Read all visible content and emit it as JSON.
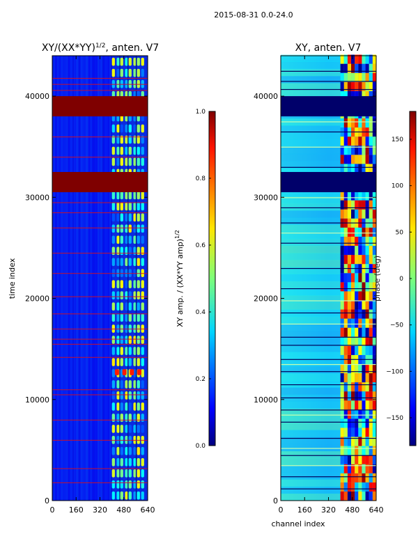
{
  "suptitle": "2015-08-31 0.0-24.0",
  "chart_data": [
    {
      "type": "heatmap",
      "title_main": "XY/(XX*YY)",
      "title_exp": "1/2",
      "title_tail": ", anten. V7",
      "xlabel": "",
      "ylabel": "time index",
      "xlim": [
        0,
        640
      ],
      "ylim": [
        0,
        44000
      ],
      "xticks": [
        "0",
        "160",
        "320",
        "480",
        "640"
      ],
      "yticks": [
        "0",
        "10000",
        "20000",
        "30000",
        "40000"
      ],
      "saturated_bands": [
        [
          38000,
          40000
        ],
        [
          30500,
          32500
        ]
      ],
      "colorbar": {
        "label_main": "XY amp. / (XX*YY amp)",
        "label_exp": "1/2",
        "range": [
          0.0,
          1.0
        ],
        "ticks": [
          "0.0",
          "0.2",
          "0.4",
          "0.6",
          "0.8",
          "1.0"
        ],
        "colormap": "jet"
      }
    },
    {
      "type": "heatmap",
      "title": "XY, anten. V7",
      "xlabel": "channel index",
      "ylabel": "",
      "xlim": [
        0,
        640
      ],
      "ylim": [
        0,
        44000
      ],
      "xticks": [
        "0",
        "160",
        "320",
        "480",
        "640"
      ],
      "yticks": [
        "0",
        "10000",
        "20000",
        "30000",
        "40000"
      ],
      "saturated_bands": [
        [
          38000,
          40000
        ],
        [
          30500,
          32500
        ]
      ],
      "colorbar": {
        "label": "phase (deg)",
        "range": [
          -180,
          180
        ],
        "ticks": [
          "−150",
          "−100",
          "−50",
          "0",
          "50",
          "100",
          "150"
        ],
        "colormap": "jet"
      }
    }
  ]
}
